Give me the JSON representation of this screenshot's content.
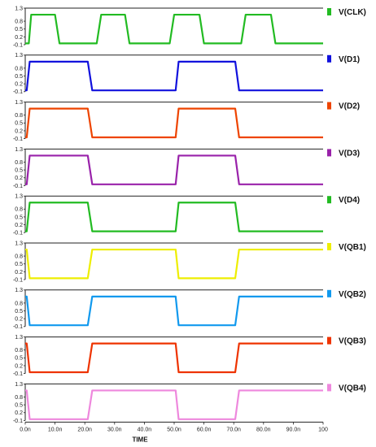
{
  "chart_data": {
    "type": "line",
    "xlabel": "TIME",
    "x_unit": "ns",
    "xlim": [
      0,
      100
    ],
    "x_ticks": [
      "0.0n",
      "10.0n",
      "20.0n",
      "30.0n",
      "40.0n",
      "50.0n",
      "60.0n",
      "70.0n",
      "80.0n",
      "90.0n",
      "100"
    ],
    "y_ticks": [
      "1.3",
      "0.8",
      "0.5",
      "0.2",
      "-0.1"
    ],
    "ylim": [
      -0.1,
      1.3
    ],
    "series": [
      {
        "name": "V(CLK)",
        "color": "#22bb22",
        "points": [
          [
            0,
            -0.05
          ],
          [
            1.2,
            -0.05
          ],
          [
            2.0,
            1.05
          ],
          [
            10.0,
            1.05
          ],
          [
            11.5,
            -0.05
          ],
          [
            24.0,
            -0.05
          ],
          [
            25.5,
            1.05
          ],
          [
            33.5,
            1.05
          ],
          [
            35.0,
            -0.05
          ],
          [
            48.5,
            -0.05
          ],
          [
            50.0,
            1.05
          ],
          [
            58.5,
            1.05
          ],
          [
            60.0,
            -0.05
          ],
          [
            72.5,
            -0.05
          ],
          [
            74.0,
            1.05
          ],
          [
            82.5,
            1.05
          ],
          [
            84.0,
            -0.05
          ],
          [
            100,
            -0.05
          ]
        ]
      },
      {
        "name": "V(D1)",
        "color": "#1111dd",
        "points": [
          [
            0,
            -0.05
          ],
          [
            0.5,
            -0.05
          ],
          [
            1.5,
            1.05
          ],
          [
            21.0,
            1.05
          ],
          [
            22.5,
            -0.05
          ],
          [
            50.5,
            -0.05
          ],
          [
            51.5,
            1.05
          ],
          [
            70.5,
            1.05
          ],
          [
            71.8,
            -0.05
          ],
          [
            100,
            -0.05
          ]
        ]
      },
      {
        "name": "V(D2)",
        "color": "#ee4400",
        "points": [
          [
            0,
            -0.05
          ],
          [
            0.5,
            -0.05
          ],
          [
            1.5,
            1.05
          ],
          [
            21.0,
            1.05
          ],
          [
            22.5,
            -0.05
          ],
          [
            50.5,
            -0.05
          ],
          [
            51.5,
            1.05
          ],
          [
            70.5,
            1.05
          ],
          [
            71.8,
            -0.05
          ],
          [
            100,
            -0.05
          ]
        ]
      },
      {
        "name": "V(D3)",
        "color": "#9922aa",
        "points": [
          [
            0,
            -0.05
          ],
          [
            0.5,
            -0.05
          ],
          [
            1.5,
            1.05
          ],
          [
            21.0,
            1.05
          ],
          [
            22.5,
            -0.05
          ],
          [
            50.5,
            -0.05
          ],
          [
            51.5,
            1.05
          ],
          [
            70.5,
            1.05
          ],
          [
            71.8,
            -0.05
          ],
          [
            100,
            -0.05
          ]
        ]
      },
      {
        "name": "V(D4)",
        "color": "#22bb22",
        "points": [
          [
            0,
            -0.05
          ],
          [
            0.5,
            -0.05
          ],
          [
            1.5,
            1.05
          ],
          [
            21.0,
            1.05
          ],
          [
            22.5,
            -0.05
          ],
          [
            50.5,
            -0.05
          ],
          [
            51.5,
            1.05
          ],
          [
            70.5,
            1.05
          ],
          [
            71.8,
            -0.05
          ],
          [
            100,
            -0.05
          ]
        ]
      },
      {
        "name": "V(QB1)",
        "color": "#eeee00",
        "points": [
          [
            0,
            1.05
          ],
          [
            0.5,
            1.05
          ],
          [
            1.5,
            -0.05
          ],
          [
            21.0,
            -0.05
          ],
          [
            22.5,
            1.05
          ],
          [
            50.5,
            1.05
          ],
          [
            51.5,
            -0.05
          ],
          [
            70.5,
            -0.05
          ],
          [
            71.8,
            1.05
          ],
          [
            100,
            1.05
          ]
        ]
      },
      {
        "name": "V(QB2)",
        "color": "#1199ee",
        "points": [
          [
            0,
            1.05
          ],
          [
            0.5,
            1.05
          ],
          [
            1.5,
            -0.05
          ],
          [
            21.0,
            -0.05
          ],
          [
            22.5,
            1.05
          ],
          [
            50.5,
            1.05
          ],
          [
            51.5,
            -0.05
          ],
          [
            70.5,
            -0.05
          ],
          [
            71.8,
            1.05
          ],
          [
            100,
            1.05
          ]
        ]
      },
      {
        "name": "V(QB3)",
        "color": "#ee3300",
        "points": [
          [
            0,
            1.05
          ],
          [
            0.5,
            1.05
          ],
          [
            1.5,
            -0.05
          ],
          [
            21.0,
            -0.05
          ],
          [
            22.5,
            1.05
          ],
          [
            50.5,
            1.05
          ],
          [
            51.5,
            -0.05
          ],
          [
            70.5,
            -0.05
          ],
          [
            71.8,
            1.05
          ],
          [
            100,
            1.05
          ]
        ]
      },
      {
        "name": "V(QB4)",
        "color": "#ee88dd",
        "points": [
          [
            0,
            1.05
          ],
          [
            0.5,
            1.05
          ],
          [
            1.5,
            -0.05
          ],
          [
            21.0,
            -0.05
          ],
          [
            22.5,
            1.05
          ],
          [
            50.5,
            1.05
          ],
          [
            51.5,
            -0.05
          ],
          [
            70.5,
            -0.05
          ],
          [
            71.8,
            1.05
          ],
          [
            100,
            1.05
          ]
        ]
      }
    ]
  }
}
